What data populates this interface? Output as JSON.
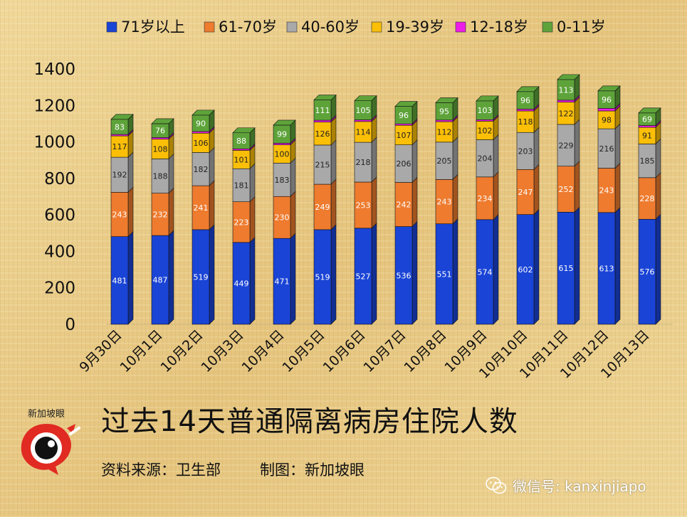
{
  "chart_data": {
    "type": "bar",
    "stacked": true,
    "title": "过去14天普通隔离病房住院人数",
    "ylim": [
      0,
      1400
    ],
    "yticks": [
      0,
      200,
      400,
      600,
      800,
      1000,
      1200,
      1400
    ],
    "legend_position": "top",
    "categories": [
      "9月30日",
      "10月1日",
      "10月2日",
      "10月3日",
      "10月4日",
      "10月5日",
      "10月6日",
      "10月7日",
      "10月8日",
      "10月9日",
      "10月10日",
      "10月11日",
      "10月12日",
      "10月13日"
    ],
    "series": [
      {
        "name": "71岁以上",
        "color": "#1a44d6",
        "values": [
          481,
          487,
          519,
          449,
          471,
          519,
          527,
          536,
          551,
          574,
          602,
          615,
          613,
          576
        ]
      },
      {
        "name": "61-70岁",
        "color": "#ee7b2e",
        "values": [
          243,
          232,
          241,
          223,
          230,
          249,
          253,
          242,
          243,
          234,
          247,
          252,
          243,
          228
        ]
      },
      {
        "name": "40-60岁",
        "color": "#a9a9a9",
        "values": [
          192,
          188,
          182,
          181,
          183,
          215,
          218,
          206,
          205,
          204,
          203,
          229,
          216,
          185
        ]
      },
      {
        "name": "19-39岁",
        "color": "#fbbf08",
        "values": [
          117,
          108,
          106,
          101,
          100,
          126,
          114,
          107,
          112,
          102,
          118,
          122,
          98,
          91
        ]
      },
      {
        "name": "12-18岁",
        "color": "#ee1ce8",
        "values": [
          8,
          9,
          9,
          8,
          9,
          10,
          9,
          8,
          9,
          8,
          10,
          11,
          14,
          10
        ]
      },
      {
        "name": "0-11岁",
        "color": "#5ea33a",
        "values": [
          83,
          76,
          90,
          88,
          99,
          111,
          105,
          96,
          95,
          103,
          96,
          113,
          96,
          69
        ]
      }
    ]
  },
  "footer": {
    "source": "资料来源：卫生部",
    "maker": "制图：新加坡眼",
    "wechat": "微信号: kanxinjiapo",
    "logo_text": "新加坡眼"
  }
}
